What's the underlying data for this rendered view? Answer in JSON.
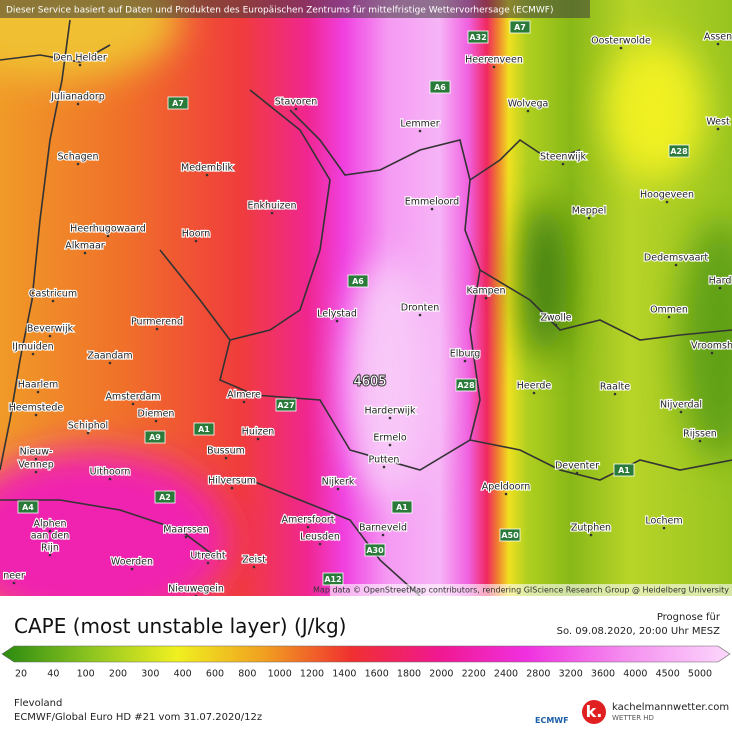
{
  "header": {
    "notice": "Dieser Service basiert auf Daten und Produkten des Europäischen Zentrums für mittelfristige Wettervorhersage (ECMWF)"
  },
  "map": {
    "places": [
      "Den Helder",
      "Julianadorp",
      "Schagen",
      "Medemblik",
      "Stavoren",
      "Lemmer",
      "Heerenveen",
      "Wolvega",
      "Oosterwolde",
      "Assen",
      "West",
      "Steenwijk",
      "Hoogeveen",
      "Meppel",
      "Emmeloord",
      "Enkhuizen",
      "Heerhugowaard",
      "Hoorn",
      "Alkmaar",
      "Dedemsvaart",
      "Hard",
      "Castricum",
      "Kampen",
      "Lelystad",
      "Dronten",
      "Zwolle",
      "Ommen",
      "Purmerend",
      "Beverwijk",
      "IJmuiden",
      "Zaandam",
      "Elburg",
      "Vroomsh",
      "Haarlem",
      "Amsterdam",
      "Heerde",
      "Raalte",
      "Heemstede",
      "Almere",
      "Diemen",
      "Harderwijk",
      "Nijverdal",
      "Schiphol",
      "Huizen",
      "Ermelo",
      "Rijssen",
      "Nieuw-",
      "Vennep",
      "Bussum",
      "Putten",
      "Uithoorn",
      "Hilversum",
      "Nijkerk",
      "Deventer",
      "Apeldoorn",
      "Lochem",
      "Alphen",
      "aan den",
      "Rijn",
      "Amersfoort",
      "Zutphen",
      "Barneveld",
      "Leusden",
      "Maarssen",
      "Woerden",
      "Utrecht",
      "Zeist",
      "neer",
      "Nieuwegein"
    ],
    "roads": [
      "A32",
      "A7",
      "A7",
      "A6",
      "A28",
      "A6",
      "A28",
      "A27",
      "A1",
      "A9",
      "A1",
      "A1",
      "A2",
      "A4",
      "A50",
      "A30",
      "A12"
    ],
    "max_value": 4605,
    "attribution": "Map data © OpenStreetMap contributors, rendering GIScience Research Group @ Heidelberg University"
  },
  "title": "CAPE (most unstable layer) (J/kg)",
  "forecast": {
    "label": "Prognose für",
    "time": "So. 09.08.2020, 20:00 Uhr MESZ"
  },
  "legend": {
    "ticks": [
      20,
      40,
      100,
      200,
      300,
      400,
      600,
      800,
      1000,
      1200,
      1400,
      1600,
      1800,
      2000,
      2200,
      2400,
      2800,
      3200,
      3600,
      4000,
      4500,
      5000
    ]
  },
  "footer": {
    "region": "Flevoland",
    "model": "ECMWF/Global Euro HD #21 vom 31.07.2020/12z",
    "ecmwf_logo": "ECMWF",
    "site": "kachelmannwetter.com",
    "site_tagline": "WETTER HD"
  }
}
